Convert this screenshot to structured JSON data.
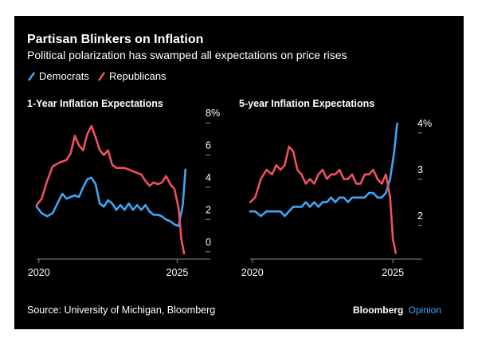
{
  "header": {
    "title": "Partisan Blinkers on Inflation",
    "subtitle": "Political polarization has swamped all expectations on price rises"
  },
  "legend": [
    {
      "label": "Democrats",
      "color": "#3ea6f5"
    },
    {
      "label": "Republicans",
      "color": "#f0515e"
    }
  ],
  "footer": {
    "source": "Source: University of Michigan, Bloomberg",
    "brand": "Bloomberg",
    "brand_suffix": "Opinion",
    "brand_suffix_color": "#3ea6f5"
  },
  "colors": {
    "background": "#000000",
    "text": "#ffffff",
    "axis": "#8a8a8a"
  },
  "chart_data": [
    {
      "type": "line",
      "title": "1-Year Inflation Expectations",
      "x_ticks": [
        2020,
        2025
      ],
      "xlim": [
        2019.92,
        2025.42
      ],
      "ylim": [
        -0.6,
        8.0
      ],
      "y_ticks": [
        {
          "value": 8,
          "label": "8%"
        },
        {
          "value": 6,
          "label": "6"
        },
        {
          "value": 4,
          "label": "4"
        },
        {
          "value": 2,
          "label": "2"
        },
        {
          "value": 0,
          "label": "0"
        }
      ],
      "series": [
        {
          "name": "Democrats",
          "color": "#3ea6f5",
          "x": [
            2019.92,
            2020.1,
            2020.3,
            2020.5,
            2020.7,
            2020.85,
            2021.0,
            2021.15,
            2021.3,
            2021.45,
            2021.6,
            2021.75,
            2021.9,
            2022.05,
            2022.2,
            2022.35,
            2022.5,
            2022.65,
            2022.8,
            2022.95,
            2023.1,
            2023.25,
            2023.4,
            2023.55,
            2023.7,
            2023.85,
            2024.0,
            2024.15,
            2024.3,
            2024.45,
            2024.6,
            2024.75,
            2024.9,
            2025.05,
            2025.2,
            2025.3
          ],
          "values": [
            2.5,
            2.1,
            1.9,
            2.1,
            2.8,
            3.3,
            3.0,
            3.1,
            3.2,
            3.1,
            3.7,
            4.2,
            4.3,
            3.9,
            2.7,
            2.5,
            2.9,
            2.7,
            2.3,
            2.6,
            2.3,
            2.7,
            2.3,
            2.6,
            2.3,
            2.6,
            2.2,
            2.0,
            2.0,
            1.9,
            1.7,
            1.6,
            1.4,
            1.3,
            2.6,
            4.8
          ]
        },
        {
          "name": "Republicans",
          "color": "#f0515e",
          "x": [
            2019.92,
            2020.1,
            2020.3,
            2020.5,
            2020.7,
            2020.85,
            2021.0,
            2021.15,
            2021.3,
            2021.45,
            2021.6,
            2021.75,
            2021.9,
            2022.05,
            2022.2,
            2022.35,
            2022.5,
            2022.65,
            2022.8,
            2022.95,
            2023.1,
            2023.25,
            2023.4,
            2023.55,
            2023.7,
            2023.85,
            2024.0,
            2024.15,
            2024.3,
            2024.45,
            2024.6,
            2024.75,
            2024.9,
            2025.05,
            2025.15,
            2025.25
          ],
          "values": [
            2.6,
            3.0,
            4.1,
            5.0,
            5.2,
            5.3,
            5.4,
            5.8,
            6.9,
            6.3,
            6.0,
            7.0,
            7.5,
            6.8,
            6.0,
            5.7,
            6.0,
            5.1,
            4.9,
            4.9,
            4.9,
            4.8,
            4.7,
            4.6,
            4.5,
            4.1,
            3.8,
            4.0,
            3.9,
            4.0,
            4.4,
            3.9,
            3.6,
            2.4,
            0.5,
            -0.4
          ]
        }
      ]
    },
    {
      "type": "line",
      "title": "5-year Inflation Expectations",
      "x_ticks": [
        2020,
        2025
      ],
      "xlim": [
        2019.92,
        2025.25
      ],
      "ylim": [
        1.22,
        4.22
      ],
      "y_ticks": [
        {
          "value": 4,
          "label": "4%"
        },
        {
          "value": 3,
          "label": "3"
        },
        {
          "value": 2,
          "label": "2"
        }
      ],
      "series": [
        {
          "name": "Democrats",
          "color": "#3ea6f5",
          "x": [
            2019.92,
            2020.1,
            2020.3,
            2020.5,
            2020.7,
            2020.85,
            2021.0,
            2021.15,
            2021.3,
            2021.45,
            2021.6,
            2021.75,
            2021.9,
            2022.05,
            2022.2,
            2022.35,
            2022.5,
            2022.65,
            2022.8,
            2022.95,
            2023.1,
            2023.25,
            2023.4,
            2023.55,
            2023.7,
            2023.85,
            2024.0,
            2024.15,
            2024.3,
            2024.45,
            2024.6,
            2024.75,
            2024.9,
            2025.05,
            2025.15
          ],
          "values": [
            2.2,
            2.2,
            2.1,
            2.2,
            2.2,
            2.2,
            2.2,
            2.1,
            2.2,
            2.3,
            2.3,
            2.3,
            2.4,
            2.3,
            2.4,
            2.3,
            2.4,
            2.4,
            2.5,
            2.4,
            2.5,
            2.5,
            2.4,
            2.5,
            2.5,
            2.5,
            2.5,
            2.6,
            2.6,
            2.5,
            2.5,
            2.6,
            2.9,
            3.5,
            4.1
          ]
        },
        {
          "name": "Republicans",
          "color": "#f0515e",
          "x": [
            2019.92,
            2020.1,
            2020.3,
            2020.5,
            2020.7,
            2020.85,
            2021.0,
            2021.15,
            2021.3,
            2021.45,
            2021.6,
            2021.75,
            2021.9,
            2022.05,
            2022.2,
            2022.35,
            2022.5,
            2022.65,
            2022.8,
            2022.95,
            2023.1,
            2023.25,
            2023.4,
            2023.55,
            2023.7,
            2023.85,
            2024.0,
            2024.15,
            2024.3,
            2024.45,
            2024.6,
            2024.75,
            2024.9,
            2025.0,
            2025.1
          ],
          "values": [
            2.4,
            2.5,
            2.9,
            3.1,
            3.0,
            3.2,
            3.1,
            3.2,
            3.6,
            3.5,
            3.1,
            3.0,
            2.8,
            2.9,
            2.8,
            3.0,
            3.1,
            2.9,
            3.0,
            3.0,
            3.1,
            2.9,
            2.9,
            3.0,
            2.8,
            2.8,
            3.0,
            3.0,
            3.1,
            2.9,
            2.8,
            3.0,
            2.5,
            1.6,
            1.3
          ]
        }
      ]
    }
  ]
}
